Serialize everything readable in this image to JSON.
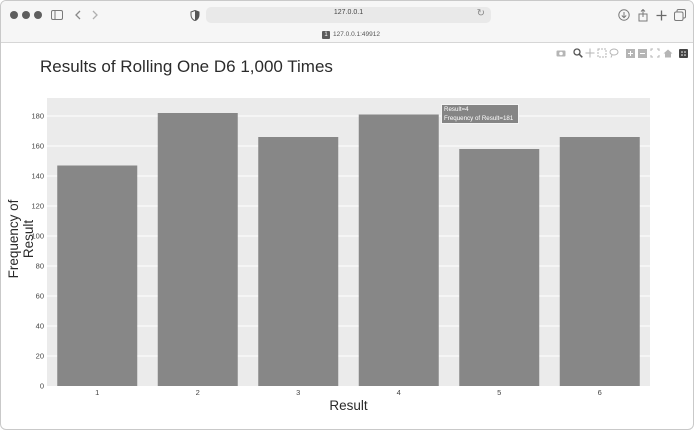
{
  "browser": {
    "address": "127.0.0.1",
    "tab_badge": "1",
    "tab_title": "127.0.0.1:49912"
  },
  "icons": {
    "window_controls": [
      "close-dot",
      "minimize-dot",
      "maximize-dot"
    ],
    "toolbar_left": [
      "sidebar-icon",
      "back-icon",
      "forward-icon"
    ],
    "toolbar_right": [
      "download-icon",
      "share-icon",
      "new-tab-icon",
      "tabs-overview-icon"
    ],
    "modebar": [
      "camera-icon",
      "zoom-icon",
      "pan-icon",
      "box-select-icon",
      "lasso-icon",
      "zoom-in-icon",
      "zoom-out-icon",
      "autoscale-icon",
      "home-icon",
      "plotly-logo-icon"
    ]
  },
  "chart_data": {
    "type": "bar",
    "title": "Results of Rolling One D6 1,000 Times",
    "xlabel": "Result",
    "ylabel": "Frequency of Result",
    "categories": [
      "1",
      "2",
      "3",
      "4",
      "5",
      "6"
    ],
    "values": [
      147,
      182,
      166,
      181,
      158,
      166
    ],
    "ylim": [
      0,
      190
    ],
    "yticks": [
      0,
      20,
      40,
      60,
      80,
      100,
      120,
      140,
      160,
      180
    ],
    "grid": true,
    "bar_color": "#878787",
    "plot_background": "#ebebeb",
    "hover": {
      "line1": "Result=4",
      "line2": "Frequency of Result=181"
    }
  }
}
